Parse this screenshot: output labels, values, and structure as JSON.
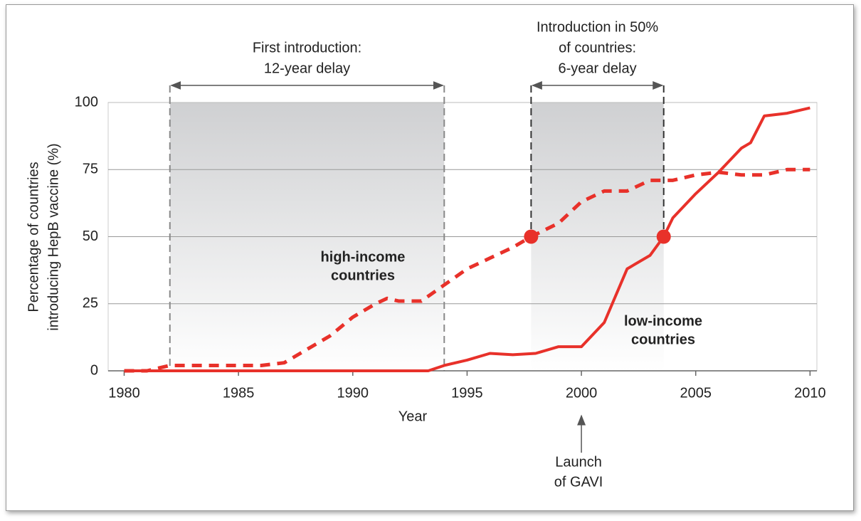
{
  "chart_data": {
    "type": "line",
    "x_label": "Year",
    "y_label": [
      "Percentage of countries",
      "introducing HepB vaccine (%)"
    ],
    "xlim": [
      1979.3,
      2010.3
    ],
    "ylim": [
      0,
      100
    ],
    "xticks": [
      1980,
      1985,
      1990,
      1995,
      2000,
      2005,
      2010
    ],
    "yticks": [
      0,
      25,
      50,
      75,
      100
    ],
    "grid": true,
    "series": [
      {
        "label": [
          "high-income",
          "countries"
        ],
        "color": "#e8312a",
        "style": "dashed",
        "x": [
          1980,
          1981,
          1981.5,
          1982,
          1983,
          1984,
          1985,
          1986,
          1987,
          1988,
          1989,
          1990,
          1991,
          1991.5,
          1992,
          1993,
          1994,
          1995,
          1996,
          1997,
          1997.8,
          1999,
          2000,
          2001,
          2002,
          2003,
          2004,
          2005,
          2006,
          2007,
          2008,
          2009,
          2010
        ],
        "values": [
          0,
          0,
          1,
          2,
          2,
          2,
          2,
          2,
          3,
          8,
          13,
          20,
          25,
          27,
          26,
          26,
          32,
          38,
          42,
          46,
          50,
          55,
          63,
          67,
          67,
          71,
          71,
          73,
          74,
          73,
          73,
          75,
          75
        ]
      },
      {
        "label": [
          "low-income",
          "countries"
        ],
        "color": "#e8312a",
        "style": "solid",
        "x": [
          1980,
          1985,
          1990,
          1993.3,
          1994,
          1995,
          1996,
          1997,
          1998,
          1999,
          2000,
          2001,
          2002,
          2003,
          2003.6,
          2004,
          2005,
          2006,
          2007,
          2007.4,
          2008,
          2009,
          2010
        ],
        "values": [
          0,
          0,
          0,
          0,
          2,
          4,
          6.5,
          6,
          6.5,
          9,
          9,
          18,
          38,
          43,
          50,
          57,
          66,
          74,
          83,
          85,
          95,
          96,
          98
        ]
      }
    ],
    "markers": {
      "color": "#e8312a",
      "x": [
        1997.8,
        2003.6
      ],
      "values": [
        50,
        50
      ]
    },
    "highlights": [
      {
        "x": [
          1982,
          1994
        ],
        "lines": [
          "First introduction:",
          "12-year delay"
        ]
      },
      {
        "x": [
          1997.8,
          2003.6
        ],
        "lines": [
          "Introduction in 50%",
          "of countries:",
          "6-year delay"
        ]
      }
    ],
    "event": {
      "x": 2000,
      "lines": [
        "Launch",
        "of GAVI"
      ]
    }
  }
}
